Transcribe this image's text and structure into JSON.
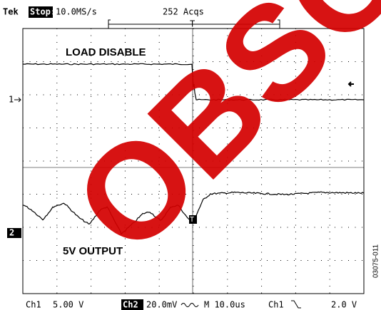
{
  "header": {
    "brand": "Tek",
    "state": "Stop:",
    "sample_rate": "10.0MS/s",
    "acquisitions": "252 Acqs"
  },
  "annotations": {
    "top": "LOAD DISABLE",
    "bottom": "5V OUTPUT"
  },
  "markers": {
    "ch1": "1",
    "ch2": "2",
    "trigger": "T"
  },
  "status": {
    "ch1_label": "Ch1",
    "ch1_scale": "5.00 V",
    "ch2_label": "Ch2",
    "ch2_scale": "20.0mV",
    "timebase": "M 10.0us",
    "trigger_source": "Ch1",
    "trigger_level": "2.0 V"
  },
  "figure_id": "03075-011",
  "watermark": "OBSOLETE"
}
